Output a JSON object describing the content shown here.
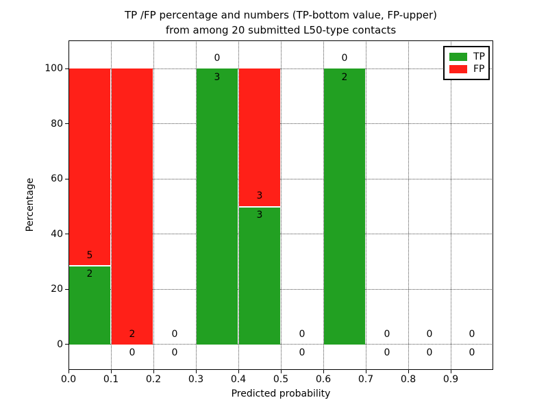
{
  "figure": {
    "background": "#ffffff"
  },
  "chart_data": {
    "type": "bar",
    "stacked": true,
    "title_lines": {
      "line1": "TP /FP percentage and numbers (TP-bottom value, FP-upper)",
      "line2": "from among 20 submitted L50-type contacts"
    },
    "xlabel": "Predicted probability",
    "ylabel": "Percentage",
    "xlim": [
      0.0,
      1.0
    ],
    "ylim": [
      -9.2,
      110.2
    ],
    "grid": "dotted",
    "x_ticks": [
      {
        "value": 0.0,
        "label": "0.0"
      },
      {
        "value": 0.1,
        "label": "0.1"
      },
      {
        "value": 0.2,
        "label": "0.2"
      },
      {
        "value": 0.3,
        "label": "0.3"
      },
      {
        "value": 0.4,
        "label": "0.4"
      },
      {
        "value": 0.5,
        "label": "0.5"
      },
      {
        "value": 0.6,
        "label": "0.6"
      },
      {
        "value": 0.7,
        "label": "0.7"
      },
      {
        "value": 0.8,
        "label": "0.8"
      },
      {
        "value": 0.9,
        "label": "0.9"
      }
    ],
    "y_ticks": [
      {
        "value": 0,
        "label": "0"
      },
      {
        "value": 20,
        "label": "20"
      },
      {
        "value": 40,
        "label": "40"
      },
      {
        "value": 60,
        "label": "60"
      },
      {
        "value": 80,
        "label": "80"
      },
      {
        "value": 100,
        "label": "100"
      }
    ],
    "bin_edges": [
      0.0,
      0.1,
      0.2,
      0.3,
      0.4,
      0.5,
      0.6,
      0.7,
      0.8,
      0.9,
      1.0
    ],
    "bins": [
      {
        "range": [
          0.0,
          0.1
        ],
        "tp_count": 2,
        "fp_count": 5,
        "tp_pct": 28.57,
        "fp_pct": 71.43
      },
      {
        "range": [
          0.1,
          0.2
        ],
        "tp_count": 0,
        "fp_count": 2,
        "tp_pct": 0,
        "fp_pct": 100
      },
      {
        "range": [
          0.2,
          0.3
        ],
        "tp_count": 0,
        "fp_count": 0,
        "tp_pct": 0,
        "fp_pct": 0
      },
      {
        "range": [
          0.3,
          0.4
        ],
        "tp_count": 3,
        "fp_count": 0,
        "tp_pct": 100,
        "fp_pct": 0
      },
      {
        "range": [
          0.4,
          0.5
        ],
        "tp_count": 3,
        "fp_count": 3,
        "tp_pct": 50,
        "fp_pct": 50
      },
      {
        "range": [
          0.5,
          0.6
        ],
        "tp_count": 0,
        "fp_count": 0,
        "tp_pct": 0,
        "fp_pct": 0
      },
      {
        "range": [
          0.6,
          0.7
        ],
        "tp_count": 2,
        "fp_count": 0,
        "tp_pct": 100,
        "fp_pct": 0
      },
      {
        "range": [
          0.7,
          0.8
        ],
        "tp_count": 0,
        "fp_count": 0,
        "tp_pct": 0,
        "fp_pct": 0
      },
      {
        "range": [
          0.8,
          0.9
        ],
        "tp_count": 0,
        "fp_count": 0,
        "tp_pct": 0,
        "fp_pct": 0
      },
      {
        "range": [
          0.9,
          1.0
        ],
        "tp_count": 0,
        "fp_count": 0,
        "tp_pct": 0,
        "fp_pct": 0
      }
    ],
    "colors": {
      "tp": "#22a022",
      "fp": "#ff2018",
      "grid": "#4d4d4d",
      "text": "#000000",
      "background": "#ffffff"
    },
    "legend": {
      "position": "upper right",
      "items": [
        {
          "label": "TP",
          "color": "#22a022"
        },
        {
          "label": "FP",
          "color": "#ff2018"
        }
      ]
    }
  }
}
